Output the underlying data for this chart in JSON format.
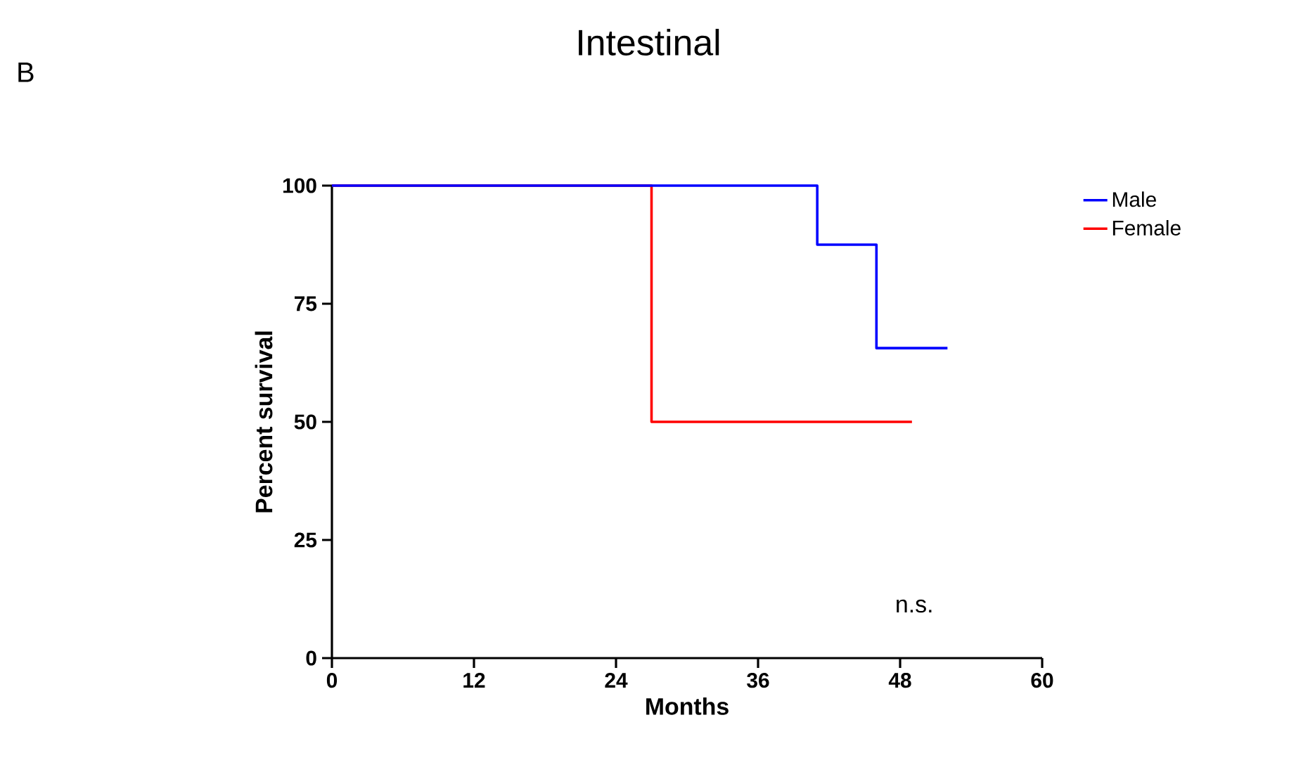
{
  "chart_data": {
    "type": "step",
    "title": "Intestinal",
    "xlabel": "Months",
    "ylabel": "Percent survival",
    "xlim": [
      0,
      60
    ],
    "xticks": [
      0,
      12,
      24,
      36,
      48,
      60
    ],
    "ylim": [
      0,
      100
    ],
    "yticks": [
      0,
      25,
      50,
      75,
      100
    ],
    "series": [
      {
        "name": "Male",
        "color": "#0000ff",
        "x": [
          0,
          41,
          44,
          45,
          46,
          50,
          51,
          52
        ],
        "values": [
          100,
          87.5,
          87.5,
          87.5,
          65.6,
          65.6,
          65.6,
          65.6
        ]
      },
      {
        "name": "Female",
        "color": "#ff0000",
        "x": [
          0,
          27,
          49
        ],
        "values": [
          100,
          50,
          50
        ]
      }
    ],
    "legend": "top right",
    "grid": false,
    "marker": "none",
    "line_style": "solid",
    "annotations": [
      "B",
      "n.s."
    ]
  }
}
